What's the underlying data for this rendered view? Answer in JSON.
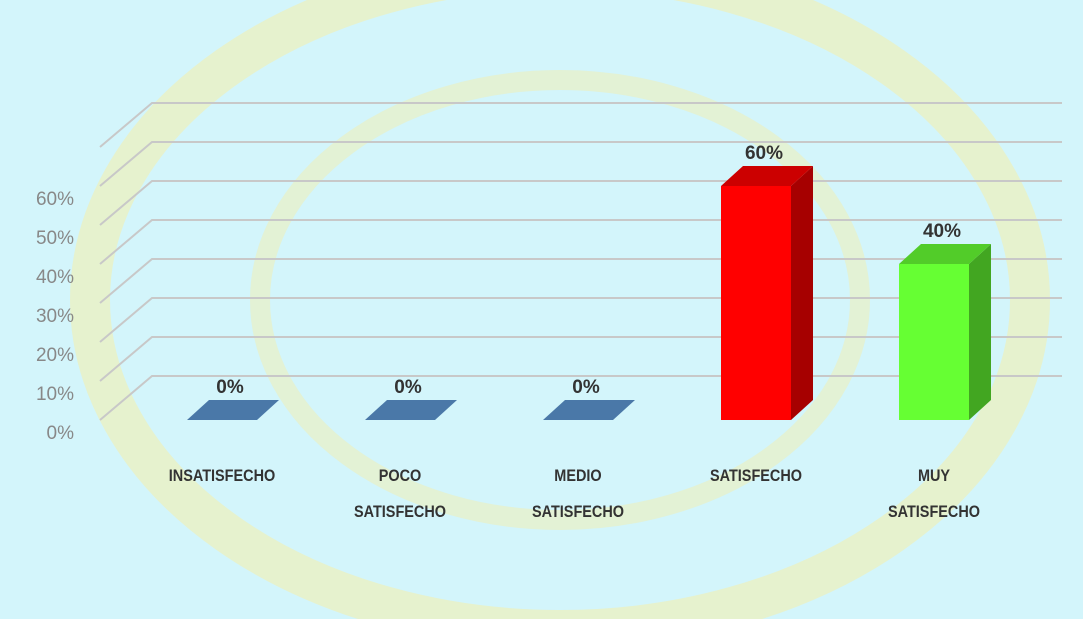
{
  "chart_data": {
    "type": "bar3d",
    "categories": [
      "INSATISFECHO",
      "POCO SATISFECHO",
      "MEDIO SATISFECHO",
      "SATISFECHO",
      "MUY SATISFECHO"
    ],
    "values": [
      0,
      0,
      0,
      60,
      40
    ],
    "value_labels": [
      "0%",
      "0%",
      "0%",
      "60%",
      "40%"
    ],
    "colors": [
      "#4a78a8",
      "#4a78a8",
      "#4a78a8",
      "#ff0000",
      "#66ff33"
    ],
    "ylim": [
      0,
      70
    ],
    "yticks": [
      {
        "value": 0,
        "label": "0%"
      },
      {
        "value": 10,
        "label": "10%"
      },
      {
        "value": 20,
        "label": "20%"
      },
      {
        "value": 30,
        "label": "30%"
      },
      {
        "value": 40,
        "label": "40%"
      },
      {
        "value": 50,
        "label": "50%"
      },
      {
        "value": 60,
        "label": "60%"
      }
    ],
    "grid": true
  }
}
